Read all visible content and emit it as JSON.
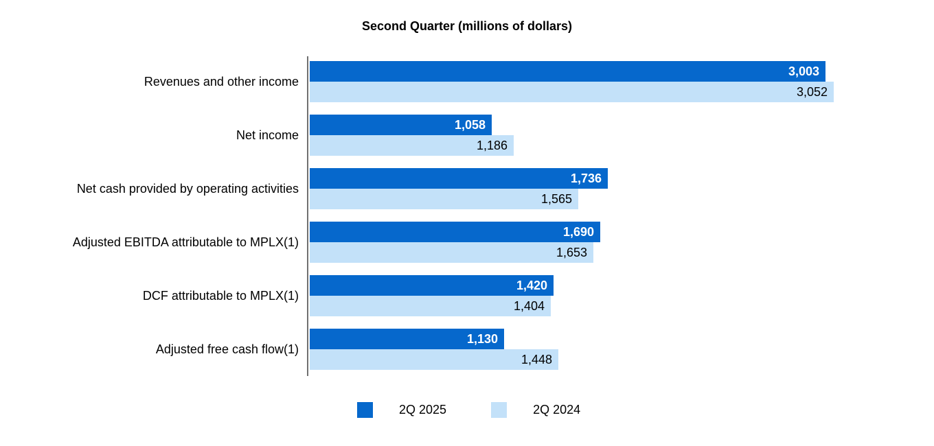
{
  "chart_data": {
    "type": "bar",
    "orientation": "horizontal",
    "title": "Second Quarter (millions of dollars)",
    "categories": [
      "Revenues and other income",
      "Net income",
      "Net cash provided by operating activities",
      "Adjusted EBITDA attributable to MPLX(1)",
      "DCF attributable to MPLX(1)",
      "Adjusted free cash flow(1)"
    ],
    "series": [
      {
        "name": "2Q 2025",
        "color": "#0668cc",
        "label_color": "#ffffff",
        "label_bold": true,
        "values": [
          3003,
          1058,
          1736,
          1690,
          1420,
          1130
        ],
        "value_labels": [
          "3,003",
          "1,058",
          "1,736",
          "1,690",
          "1,420",
          "1,130"
        ]
      },
      {
        "name": "2Q 2024",
        "color": "#c3e1f9",
        "label_color": "#000000",
        "label_bold": false,
        "values": [
          3052,
          1186,
          1565,
          1653,
          1404,
          1448
        ],
        "value_labels": [
          "3,052",
          "1,186",
          "1,565",
          "1,653",
          "1,404",
          "1,448"
        ]
      }
    ],
    "xlim": [
      0,
      3600
    ],
    "grid": false,
    "legend_position": "bottom",
    "axis_color": "#707070",
    "background": "#ffffff"
  }
}
